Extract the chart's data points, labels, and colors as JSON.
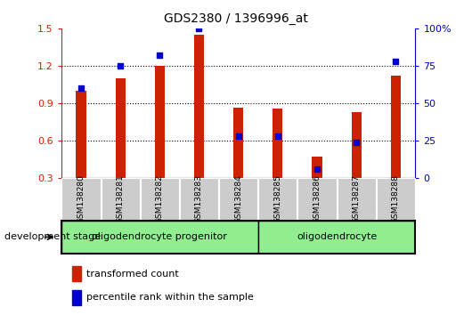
{
  "title": "GDS2380 / 1396996_at",
  "categories": [
    "GSM138280",
    "GSM138281",
    "GSM138282",
    "GSM138283",
    "GSM138284",
    "GSM138285",
    "GSM138286",
    "GSM138287",
    "GSM138288"
  ],
  "red_values": [
    1.0,
    1.1,
    1.2,
    1.45,
    0.865,
    0.855,
    0.47,
    0.83,
    1.12
  ],
  "blue_percentiles": [
    60,
    75,
    82,
    100,
    28,
    28,
    6,
    24,
    78
  ],
  "ylim_left": [
    0.3,
    1.5
  ],
  "ylim_right": [
    0,
    100
  ],
  "yticks_left": [
    0.3,
    0.6,
    0.9,
    1.2,
    1.5
  ],
  "yticks_right": [
    0,
    25,
    50,
    75,
    100
  ],
  "ytick_labels_right": [
    "0",
    "25",
    "50",
    "75",
    "100%"
  ],
  "bar_color": "#cc2200",
  "dot_color": "#0000cc",
  "group1_label": "oligodendrocyte progenitor",
  "group2_label": "oligodendrocyte",
  "group1_indices": [
    0,
    1,
    2,
    3,
    4
  ],
  "group2_indices": [
    5,
    6,
    7,
    8
  ],
  "stage_label": "development stage",
  "legend_red": "transformed count",
  "legend_blue": "percentile rank within the sample",
  "bar_width": 0.25,
  "dot_size": 22,
  "group1_color": "#90ee90",
  "group2_color": "#90ee90",
  "tick_label_bg": "#cccccc",
  "grid_yticks": [
    0.6,
    0.9,
    1.2
  ]
}
